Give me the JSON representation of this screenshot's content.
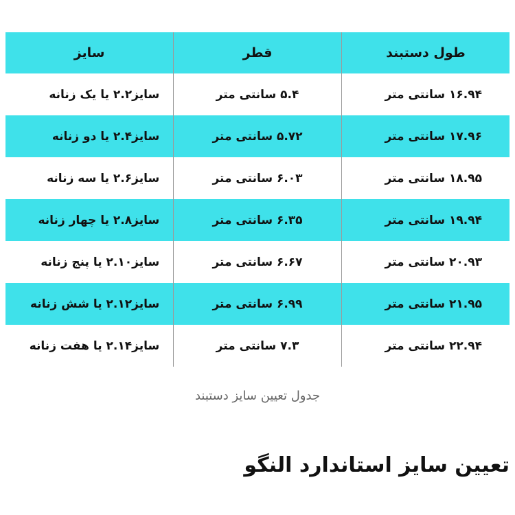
{
  "table": {
    "header": [
      "طول دستبند",
      "قطر",
      "سایز"
    ],
    "rows": [
      [
        "۱۶.۹۴ سانتی متر",
        "۵.۴ سانتی متر",
        "سایز۲.۲ یا یک زنانه"
      ],
      [
        "۱۷.۹۶ سانتی متر",
        "۵.۷۲ سانتی متر",
        "سایز۲.۴ یا دو زنانه"
      ],
      [
        "۱۸.۹۵ سانتی متر",
        "۶.۰۳ سانتی متر",
        "سایز۲.۶ یا سه زنانه"
      ],
      [
        "۱۹.۹۴ سانتی متر",
        "۶.۳۵ سانتی متر",
        "سایز۲.۸ یا چهار زنانه"
      ],
      [
        "۲۰.۹۳ سانتی متر",
        "۶.۶۷ سانتی متر",
        "سایز۲.۱۰ یا پنج زنانه"
      ],
      [
        "۲۱.۹۵ سانتی متر",
        "۶.۹۹ سانتی متر",
        "سایز۲.۱۲ یا شش زنانه"
      ],
      [
        "۲۲.۹۴ سانتی متر",
        "۷.۳ سانتی متر",
        "سایز۲.۱۴ یا هفت زنانه"
      ]
    ]
  },
  "caption": "جدول تعیین سایز دستبند",
  "heading": "تعیین سایز استاندارد النگو"
}
